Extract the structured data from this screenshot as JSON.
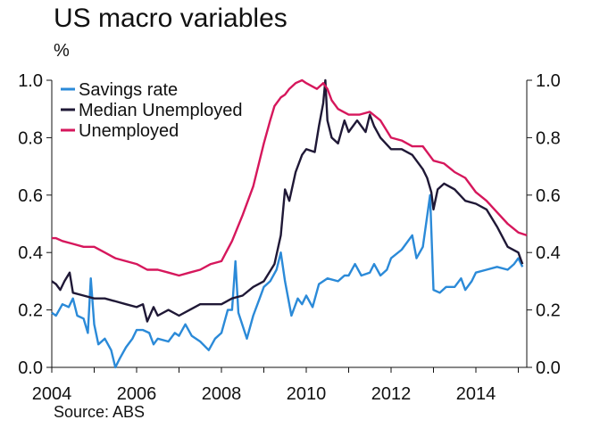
{
  "chart_data": {
    "type": "line",
    "title": "US macro variables",
    "unit_label": "%",
    "source": "Source: ABS",
    "xlim": [
      2004,
      2015.2
    ],
    "ylim": [
      0,
      1
    ],
    "x_ticks": [
      2004,
      2006,
      2008,
      2010,
      2012,
      2014
    ],
    "y_ticks": [
      0.0,
      0.2,
      0.4,
      0.6,
      0.8,
      1.0
    ],
    "y_tick_labels": [
      "0.0",
      "0.2",
      "0.4",
      "0.6",
      "0.8",
      "1.0"
    ],
    "legend_position": "top-left",
    "series": [
      {
        "name": "Savings rate",
        "color": "#2b8ad8",
        "points": [
          [
            2004.0,
            0.19
          ],
          [
            2004.1,
            0.18
          ],
          [
            2004.25,
            0.22
          ],
          [
            2004.4,
            0.21
          ],
          [
            2004.5,
            0.24
          ],
          [
            2004.6,
            0.18
          ],
          [
            2004.75,
            0.17
          ],
          [
            2004.85,
            0.12
          ],
          [
            2004.92,
            0.31
          ],
          [
            2005.0,
            0.15
          ],
          [
            2005.1,
            0.08
          ],
          [
            2005.25,
            0.1
          ],
          [
            2005.4,
            0.06
          ],
          [
            2005.5,
            0.0
          ],
          [
            2005.6,
            0.03
          ],
          [
            2005.75,
            0.07
          ],
          [
            2005.9,
            0.1
          ],
          [
            2006.0,
            0.13
          ],
          [
            2006.15,
            0.13
          ],
          [
            2006.3,
            0.12
          ],
          [
            2006.4,
            0.08
          ],
          [
            2006.5,
            0.1
          ],
          [
            2006.75,
            0.09
          ],
          [
            2006.9,
            0.12
          ],
          [
            2007.0,
            0.11
          ],
          [
            2007.15,
            0.15
          ],
          [
            2007.3,
            0.11
          ],
          [
            2007.5,
            0.09
          ],
          [
            2007.7,
            0.06
          ],
          [
            2007.85,
            0.1
          ],
          [
            2008.0,
            0.12
          ],
          [
            2008.15,
            0.2
          ],
          [
            2008.25,
            0.2
          ],
          [
            2008.33,
            0.37
          ],
          [
            2008.4,
            0.19
          ],
          [
            2008.6,
            0.1
          ],
          [
            2008.75,
            0.18
          ],
          [
            2008.9,
            0.24
          ],
          [
            2009.0,
            0.28
          ],
          [
            2009.15,
            0.3
          ],
          [
            2009.3,
            0.34
          ],
          [
            2009.4,
            0.4
          ],
          [
            2009.5,
            0.3
          ],
          [
            2009.65,
            0.18
          ],
          [
            2009.8,
            0.24
          ],
          [
            2009.9,
            0.22
          ],
          [
            2010.0,
            0.25
          ],
          [
            2010.15,
            0.21
          ],
          [
            2010.3,
            0.29
          ],
          [
            2010.5,
            0.31
          ],
          [
            2010.75,
            0.3
          ],
          [
            2010.9,
            0.32
          ],
          [
            2011.0,
            0.32
          ],
          [
            2011.15,
            0.36
          ],
          [
            2011.3,
            0.32
          ],
          [
            2011.5,
            0.33
          ],
          [
            2011.6,
            0.36
          ],
          [
            2011.75,
            0.32
          ],
          [
            2011.9,
            0.34
          ],
          [
            2012.0,
            0.38
          ],
          [
            2012.25,
            0.41
          ],
          [
            2012.5,
            0.46
          ],
          [
            2012.6,
            0.38
          ],
          [
            2012.75,
            0.42
          ],
          [
            2012.92,
            0.6
          ],
          [
            2013.0,
            0.27
          ],
          [
            2013.15,
            0.26
          ],
          [
            2013.3,
            0.28
          ],
          [
            2013.5,
            0.28
          ],
          [
            2013.65,
            0.31
          ],
          [
            2013.75,
            0.27
          ],
          [
            2013.9,
            0.3
          ],
          [
            2014.0,
            0.33
          ],
          [
            2014.25,
            0.34
          ],
          [
            2014.5,
            0.35
          ],
          [
            2014.75,
            0.34
          ],
          [
            2014.9,
            0.36
          ],
          [
            2015.0,
            0.38
          ],
          [
            2015.1,
            0.35
          ]
        ]
      },
      {
        "name": "Median Unemployed",
        "color": "#1f1836",
        "points": [
          [
            2004.0,
            0.3
          ],
          [
            2004.1,
            0.29
          ],
          [
            2004.2,
            0.27
          ],
          [
            2004.3,
            0.3
          ],
          [
            2004.42,
            0.33
          ],
          [
            2004.5,
            0.26
          ],
          [
            2004.75,
            0.25
          ],
          [
            2005.0,
            0.24
          ],
          [
            2005.25,
            0.24
          ],
          [
            2005.5,
            0.23
          ],
          [
            2005.75,
            0.22
          ],
          [
            2006.0,
            0.21
          ],
          [
            2006.15,
            0.22
          ],
          [
            2006.25,
            0.16
          ],
          [
            2006.4,
            0.21
          ],
          [
            2006.5,
            0.18
          ],
          [
            2006.75,
            0.2
          ],
          [
            2007.0,
            0.18
          ],
          [
            2007.25,
            0.2
          ],
          [
            2007.5,
            0.22
          ],
          [
            2007.75,
            0.22
          ],
          [
            2008.0,
            0.22
          ],
          [
            2008.25,
            0.24
          ],
          [
            2008.5,
            0.25
          ],
          [
            2008.75,
            0.28
          ],
          [
            2009.0,
            0.3
          ],
          [
            2009.25,
            0.36
          ],
          [
            2009.4,
            0.46
          ],
          [
            2009.5,
            0.62
          ],
          [
            2009.6,
            0.58
          ],
          [
            2009.75,
            0.68
          ],
          [
            2009.9,
            0.74
          ],
          [
            2010.0,
            0.76
          ],
          [
            2010.2,
            0.75
          ],
          [
            2010.3,
            0.84
          ],
          [
            2010.4,
            0.92
          ],
          [
            2010.45,
            1.0
          ],
          [
            2010.5,
            0.86
          ],
          [
            2010.6,
            0.8
          ],
          [
            2010.75,
            0.78
          ],
          [
            2010.9,
            0.86
          ],
          [
            2011.0,
            0.82
          ],
          [
            2011.2,
            0.86
          ],
          [
            2011.4,
            0.82
          ],
          [
            2011.5,
            0.88
          ],
          [
            2011.6,
            0.84
          ],
          [
            2011.75,
            0.8
          ],
          [
            2012.0,
            0.76
          ],
          [
            2012.25,
            0.76
          ],
          [
            2012.5,
            0.74
          ],
          [
            2012.75,
            0.69
          ],
          [
            2012.85,
            0.66
          ],
          [
            2012.95,
            0.61
          ],
          [
            2013.0,
            0.55
          ],
          [
            2013.1,
            0.62
          ],
          [
            2013.25,
            0.64
          ],
          [
            2013.5,
            0.62
          ],
          [
            2013.75,
            0.58
          ],
          [
            2014.0,
            0.57
          ],
          [
            2014.25,
            0.55
          ],
          [
            2014.5,
            0.49
          ],
          [
            2014.75,
            0.42
          ],
          [
            2015.0,
            0.4
          ],
          [
            2015.1,
            0.36
          ]
        ]
      },
      {
        "name": "Unemployed",
        "color": "#d6175c",
        "points": [
          [
            2004.0,
            0.45
          ],
          [
            2004.1,
            0.45
          ],
          [
            2004.25,
            0.44
          ],
          [
            2004.5,
            0.43
          ],
          [
            2004.75,
            0.42
          ],
          [
            2005.0,
            0.42
          ],
          [
            2005.25,
            0.4
          ],
          [
            2005.5,
            0.38
          ],
          [
            2005.75,
            0.37
          ],
          [
            2006.0,
            0.36
          ],
          [
            2006.25,
            0.34
          ],
          [
            2006.5,
            0.34
          ],
          [
            2006.75,
            0.33
          ],
          [
            2007.0,
            0.32
          ],
          [
            2007.25,
            0.33
          ],
          [
            2007.5,
            0.34
          ],
          [
            2007.75,
            0.36
          ],
          [
            2008.0,
            0.37
          ],
          [
            2008.25,
            0.44
          ],
          [
            2008.5,
            0.53
          ],
          [
            2008.75,
            0.63
          ],
          [
            2009.0,
            0.78
          ],
          [
            2009.15,
            0.86
          ],
          [
            2009.25,
            0.91
          ],
          [
            2009.4,
            0.94
          ],
          [
            2009.5,
            0.95
          ],
          [
            2009.6,
            0.97
          ],
          [
            2009.75,
            0.99
          ],
          [
            2009.9,
            1.0
          ],
          [
            2010.0,
            0.99
          ],
          [
            2010.25,
            0.97
          ],
          [
            2010.4,
            0.99
          ],
          [
            2010.5,
            0.97
          ],
          [
            2010.6,
            0.93
          ],
          [
            2010.75,
            0.9
          ],
          [
            2011.0,
            0.88
          ],
          [
            2011.25,
            0.88
          ],
          [
            2011.5,
            0.89
          ],
          [
            2011.75,
            0.86
          ],
          [
            2012.0,
            0.8
          ],
          [
            2012.25,
            0.79
          ],
          [
            2012.5,
            0.77
          ],
          [
            2012.75,
            0.77
          ],
          [
            2013.0,
            0.72
          ],
          [
            2013.25,
            0.71
          ],
          [
            2013.5,
            0.68
          ],
          [
            2013.75,
            0.66
          ],
          [
            2014.0,
            0.61
          ],
          [
            2014.25,
            0.58
          ],
          [
            2014.5,
            0.54
          ],
          [
            2014.75,
            0.5
          ],
          [
            2015.0,
            0.47
          ],
          [
            2015.2,
            0.46
          ]
        ]
      }
    ]
  }
}
